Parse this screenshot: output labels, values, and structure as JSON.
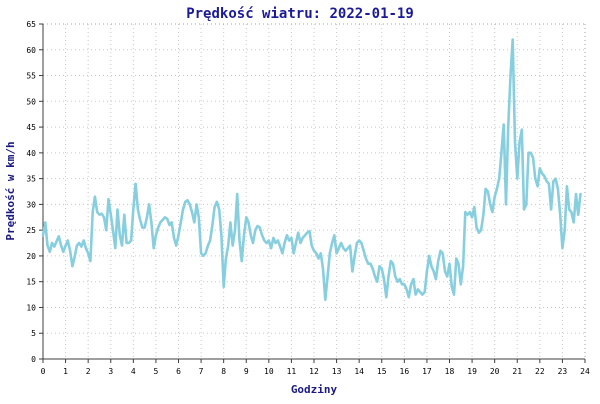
{
  "chart_data": {
    "type": "line",
    "title": "Prędkość wiatru: 2022-01-19",
    "xlabel": "Godziny",
    "ylabel": "Prędkość w km/h",
    "xlim": [
      0,
      24
    ],
    "ylim": [
      0,
      65
    ],
    "x_ticks": [
      0,
      1,
      2,
      3,
      4,
      5,
      6,
      7,
      8,
      9,
      10,
      11,
      12,
      13,
      14,
      15,
      16,
      17,
      18,
      19,
      20,
      21,
      22,
      23,
      24
    ],
    "y_ticks": [
      0,
      5,
      10,
      15,
      20,
      25,
      30,
      35,
      40,
      45,
      50,
      55,
      60,
      65
    ],
    "grid": true,
    "colors": {
      "line": "#87cedf",
      "title": "#1a1a99",
      "axis_label": "#1a1a80",
      "grid": "#c8c8c8",
      "frame": "#a0a0a0",
      "axis": "#3c3c3c"
    },
    "series": [
      {
        "values": [
          [
            0.0,
            24.0
          ],
          [
            0.1,
            26.5
          ],
          [
            0.2,
            22.0
          ],
          [
            0.3,
            20.8
          ],
          [
            0.4,
            22.5
          ],
          [
            0.5,
            21.8
          ],
          [
            0.6,
            22.8
          ],
          [
            0.7,
            23.8
          ],
          [
            0.8,
            22.0
          ],
          [
            0.9,
            20.8
          ],
          [
            1.0,
            22.0
          ],
          [
            1.1,
            23.0
          ],
          [
            1.2,
            21.0
          ],
          [
            1.3,
            18.0
          ],
          [
            1.4,
            19.8
          ],
          [
            1.5,
            22.0
          ],
          [
            1.6,
            22.5
          ],
          [
            1.7,
            21.8
          ],
          [
            1.8,
            23.0
          ],
          [
            1.9,
            21.5
          ],
          [
            2.0,
            20.5
          ],
          [
            2.1,
            19.0
          ],
          [
            2.2,
            28.5
          ],
          [
            2.3,
            31.5
          ],
          [
            2.4,
            28.5
          ],
          [
            2.5,
            28.0
          ],
          [
            2.6,
            28.2
          ],
          [
            2.7,
            27.5
          ],
          [
            2.8,
            25.0
          ],
          [
            2.9,
            31.0
          ],
          [
            3.0,
            28.0
          ],
          [
            3.1,
            25.0
          ],
          [
            3.2,
            21.5
          ],
          [
            3.3,
            29.0
          ],
          [
            3.4,
            24.0
          ],
          [
            3.5,
            22.0
          ],
          [
            3.6,
            28.0
          ],
          [
            3.7,
            22.5
          ],
          [
            3.8,
            22.5
          ],
          [
            3.9,
            23.0
          ],
          [
            4.0,
            29.0
          ],
          [
            4.1,
            34.0
          ],
          [
            4.2,
            29.0
          ],
          [
            4.3,
            27.0
          ],
          [
            4.4,
            25.5
          ],
          [
            4.5,
            25.5
          ],
          [
            4.6,
            27.5
          ],
          [
            4.7,
            30.0
          ],
          [
            4.8,
            26.5
          ],
          [
            4.9,
            21.5
          ],
          [
            5.0,
            24.0
          ],
          [
            5.1,
            25.5
          ],
          [
            5.2,
            26.5
          ],
          [
            5.3,
            27.0
          ],
          [
            5.4,
            27.5
          ],
          [
            5.5,
            27.2
          ],
          [
            5.6,
            26.0
          ],
          [
            5.7,
            26.5
          ],
          [
            5.8,
            23.5
          ],
          [
            5.9,
            22.0
          ],
          [
            6.0,
            24.0
          ],
          [
            6.1,
            26.5
          ],
          [
            6.2,
            29.0
          ],
          [
            6.3,
            30.5
          ],
          [
            6.4,
            30.8
          ],
          [
            6.5,
            30.0
          ],
          [
            6.6,
            28.5
          ],
          [
            6.7,
            26.5
          ],
          [
            6.8,
            30.0
          ],
          [
            6.9,
            27.5
          ],
          [
            7.0,
            20.5
          ],
          [
            7.1,
            20.0
          ],
          [
            7.2,
            20.5
          ],
          [
            7.3,
            22.0
          ],
          [
            7.4,
            23.0
          ],
          [
            7.5,
            26.0
          ],
          [
            7.6,
            29.5
          ],
          [
            7.7,
            30.5
          ],
          [
            7.8,
            29.0
          ],
          [
            7.9,
            24.0
          ],
          [
            8.0,
            14.0
          ],
          [
            8.1,
            19.5
          ],
          [
            8.2,
            22.0
          ],
          [
            8.3,
            26.5
          ],
          [
            8.4,
            22.0
          ],
          [
            8.5,
            25.0
          ],
          [
            8.6,
            32.0
          ],
          [
            8.7,
            23.0
          ],
          [
            8.8,
            19.0
          ],
          [
            8.9,
            24.0
          ],
          [
            9.0,
            27.5
          ],
          [
            9.1,
            26.5
          ],
          [
            9.2,
            24.0
          ],
          [
            9.3,
            22.5
          ],
          [
            9.4,
            25.0
          ],
          [
            9.5,
            25.8
          ],
          [
            9.6,
            25.5
          ],
          [
            9.7,
            24.0
          ],
          [
            9.8,
            23.0
          ],
          [
            9.9,
            22.5
          ],
          [
            10.0,
            23.0
          ],
          [
            10.1,
            21.5
          ],
          [
            10.2,
            23.5
          ],
          [
            10.3,
            22.5
          ],
          [
            10.4,
            23.0
          ],
          [
            10.5,
            21.8
          ],
          [
            10.6,
            20.5
          ],
          [
            10.7,
            22.5
          ],
          [
            10.8,
            24.0
          ],
          [
            10.9,
            23.0
          ],
          [
            11.0,
            23.5
          ],
          [
            11.1,
            20.5
          ],
          [
            11.2,
            22.5
          ],
          [
            11.3,
            24.5
          ],
          [
            11.4,
            22.5
          ],
          [
            11.5,
            23.5
          ],
          [
            11.6,
            24.0
          ],
          [
            11.7,
            24.5
          ],
          [
            11.8,
            24.8
          ],
          [
            11.9,
            22.0
          ],
          [
            12.0,
            21.0
          ],
          [
            12.1,
            20.5
          ],
          [
            12.2,
            19.5
          ],
          [
            12.3,
            20.5
          ],
          [
            12.4,
            17.5
          ],
          [
            12.5,
            11.5
          ],
          [
            12.6,
            16.0
          ],
          [
            12.7,
            20.5
          ],
          [
            12.8,
            22.5
          ],
          [
            12.9,
            24.0
          ],
          [
            13.0,
            20.5
          ],
          [
            13.1,
            21.5
          ],
          [
            13.2,
            22.5
          ],
          [
            13.3,
            21.5
          ],
          [
            13.4,
            21.0
          ],
          [
            13.5,
            21.5
          ],
          [
            13.6,
            22.0
          ],
          [
            13.7,
            17.0
          ],
          [
            13.8,
            20.0
          ],
          [
            13.9,
            22.5
          ],
          [
            14.0,
            23.0
          ],
          [
            14.1,
            22.5
          ],
          [
            14.2,
            21.0
          ],
          [
            14.3,
            19.5
          ],
          [
            14.4,
            18.5
          ],
          [
            14.5,
            18.5
          ],
          [
            14.6,
            17.5
          ],
          [
            14.7,
            16.0
          ],
          [
            14.8,
            15.0
          ],
          [
            14.9,
            18.0
          ],
          [
            15.0,
            17.5
          ],
          [
            15.1,
            15.5
          ],
          [
            15.2,
            12.0
          ],
          [
            15.3,
            16.0
          ],
          [
            15.4,
            19.0
          ],
          [
            15.5,
            18.5
          ],
          [
            15.6,
            16.0
          ],
          [
            15.7,
            15.0
          ],
          [
            15.8,
            15.5
          ],
          [
            15.9,
            14.5
          ],
          [
            16.0,
            14.5
          ],
          [
            16.1,
            13.5
          ],
          [
            16.2,
            12.0
          ],
          [
            16.3,
            14.5
          ],
          [
            16.4,
            15.5
          ],
          [
            16.5,
            12.5
          ],
          [
            16.6,
            13.5
          ],
          [
            16.7,
            13.0
          ],
          [
            16.8,
            12.5
          ],
          [
            16.9,
            13.0
          ],
          [
            17.0,
            17.0
          ],
          [
            17.1,
            20.0
          ],
          [
            17.2,
            18.0
          ],
          [
            17.3,
            17.0
          ],
          [
            17.4,
            15.5
          ],
          [
            17.5,
            19.0
          ],
          [
            17.6,
            21.0
          ],
          [
            17.7,
            20.5
          ],
          [
            17.8,
            17.0
          ],
          [
            17.9,
            16.0
          ],
          [
            18.0,
            18.5
          ],
          [
            18.1,
            14.0
          ],
          [
            18.2,
            12.5
          ],
          [
            18.3,
            19.5
          ],
          [
            18.4,
            18.5
          ],
          [
            18.5,
            14.5
          ],
          [
            18.6,
            18.0
          ],
          [
            18.7,
            28.5
          ],
          [
            18.8,
            28.0
          ],
          [
            18.9,
            28.5
          ],
          [
            19.0,
            27.5
          ],
          [
            19.1,
            29.5
          ],
          [
            19.2,
            25.5
          ],
          [
            19.3,
            24.5
          ],
          [
            19.4,
            25.0
          ],
          [
            19.5,
            28.0
          ],
          [
            19.6,
            33.0
          ],
          [
            19.7,
            32.5
          ],
          [
            19.8,
            30.0
          ],
          [
            19.9,
            28.5
          ],
          [
            20.0,
            31.5
          ],
          [
            20.1,
            33.0
          ],
          [
            20.2,
            35.0
          ],
          [
            20.3,
            40.0
          ],
          [
            20.4,
            45.5
          ],
          [
            20.5,
            30.0
          ],
          [
            20.6,
            45.0
          ],
          [
            20.7,
            55.0
          ],
          [
            20.8,
            62.0
          ],
          [
            20.9,
            42.0
          ],
          [
            21.0,
            35.0
          ],
          [
            21.1,
            42.0
          ],
          [
            21.2,
            44.5
          ],
          [
            21.3,
            29.0
          ],
          [
            21.4,
            30.0
          ],
          [
            21.5,
            40.0
          ],
          [
            21.6,
            40.0
          ],
          [
            21.7,
            39.0
          ],
          [
            21.8,
            35.0
          ],
          [
            21.9,
            33.5
          ],
          [
            22.0,
            37.0
          ],
          [
            22.1,
            36.0
          ],
          [
            22.2,
            35.5
          ],
          [
            22.3,
            34.5
          ],
          [
            22.4,
            34.0
          ],
          [
            22.5,
            29.0
          ],
          [
            22.6,
            34.5
          ],
          [
            22.7,
            35.0
          ],
          [
            22.8,
            33.0
          ],
          [
            22.9,
            28.0
          ],
          [
            23.0,
            21.5
          ],
          [
            23.1,
            25.0
          ],
          [
            23.2,
            33.5
          ],
          [
            23.3,
            29.0
          ],
          [
            23.4,
            28.5
          ],
          [
            23.5,
            26.5
          ],
          [
            23.6,
            32.0
          ],
          [
            23.7,
            28.0
          ],
          [
            23.8,
            32.0
          ]
        ]
      }
    ]
  }
}
